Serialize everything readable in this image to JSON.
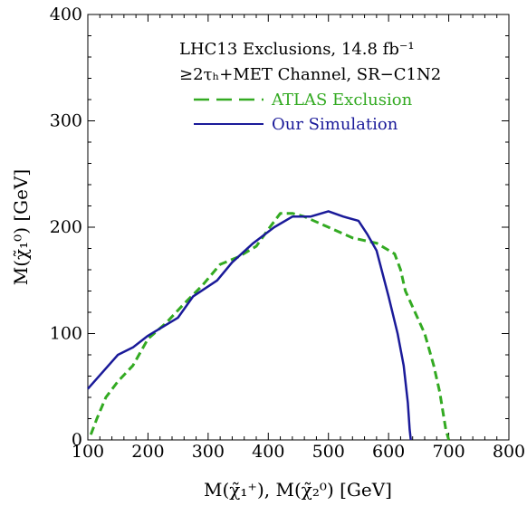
{
  "chart_data": {
    "type": "line",
    "xlabel": "M(χ̃₁⁺), M(χ̃₂⁰) [GeV]",
    "ylabel": "M(χ̃₁⁰) [GeV]",
    "xlim": [
      100,
      800
    ],
    "ylim": [
      0,
      400
    ],
    "x_ticks": [
      100,
      200,
      300,
      400,
      500,
      600,
      700,
      800
    ],
    "y_ticks": [
      0,
      100,
      200,
      300,
      400
    ],
    "grid": false,
    "legend_position": "top-right",
    "annotations": [
      "LHC13 Exclusions, 14.8 fb⁻¹",
      "≥2τₕ+MET Channel, SR−C1N2"
    ],
    "series": [
      {
        "name": "ATLAS Exclusion",
        "style": "dashed",
        "color": "#33aa22",
        "x": [
          105,
          115,
          130,
          150,
          175,
          200,
          230,
          260,
          290,
          320,
          350,
          380,
          400,
          420,
          440,
          460,
          500,
          540,
          580,
          610,
          620,
          628,
          632,
          640,
          660,
          675,
          685,
          695,
          700
        ],
        "y": [
          5,
          20,
          40,
          55,
          70,
          95,
          110,
          128,
          145,
          165,
          172,
          182,
          198,
          213,
          213,
          210,
          200,
          190,
          185,
          175,
          160,
          140,
          135,
          125,
          100,
          70,
          45,
          10,
          0
        ]
      },
      {
        "name": "Our Simulation",
        "style": "solid",
        "color": "#1a1a99",
        "x": [
          100,
          150,
          175,
          200,
          250,
          275,
          315,
          340,
          375,
          410,
          440,
          470,
          500,
          525,
          550,
          565,
          580,
          600,
          615,
          625,
          632,
          635,
          637
        ],
        "y": [
          48,
          80,
          87,
          98,
          115,
          135,
          150,
          167,
          185,
          200,
          210,
          210,
          215,
          210,
          206,
          193,
          178,
          135,
          100,
          70,
          35,
          10,
          0
        ]
      }
    ]
  }
}
